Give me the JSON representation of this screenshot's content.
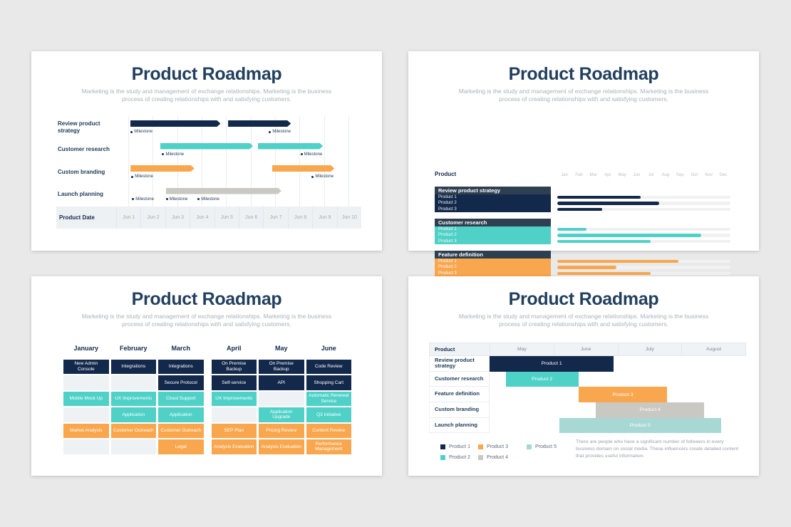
{
  "page": {
    "background": "#e9e9e9"
  },
  "colors": {
    "navy": "#13294b",
    "teal": "#4fd1c7",
    "orange": "#f9a74e",
    "gray": "#cac8c3",
    "light_teal": "#a8d8d4",
    "slate": "#2e3f51",
    "title_navy": "#22405e",
    "subtitle_gray": "#a8b2ba",
    "label_navy": "#1d3b57",
    "track_gray": "#f1f1f1",
    "empty_cell": "#eef2f5",
    "grid_line": "#e9edf0",
    "axis_text": "#9faab3"
  },
  "slides": [
    {
      "title": "Product Roadmap",
      "subtitle": "Marketing is the study and management of exchange relationships. Marketing is the business process of creating relationships with and satisfying customers."
    },
    {
      "title": "Product Roadmap",
      "subtitle": "Marketing is the study and management of exchange relationships. Marketing is the business process of creating relationships with and satisfying customers."
    },
    {
      "title": "Product Roadmap",
      "subtitle": "Marketing is the study and management of exchange relationships. Marketing is the business process of creating relationships with and satisfying customers."
    },
    {
      "title": "Product Roadmap",
      "subtitle": "Marketing is the study and management of exchange relationships. Marketing is the business process of creating relationships with and satisfying customers."
    }
  ],
  "chart_data": [
    {
      "type": "gantt_milestones",
      "units": "percent of Jun 1 - Jun 10 span",
      "milestone_label": "Milestone",
      "axis": {
        "label": "Product Date",
        "ticks": [
          "Jun 1",
          "Jun 2",
          "Jun 3",
          "Jun 4",
          "Jun 5",
          "Jun 6",
          "Jun 7",
          "Jun 8",
          "Jun 9",
          "Jun 10"
        ]
      },
      "rows": [
        {
          "label": "Review product strategy",
          "color": "navy",
          "bars": [
            [
              5.7,
              42.7
            ],
            [
              45.8,
              71.5
            ]
          ],
          "milestones": [
            5.9,
            62.5
          ]
        },
        {
          "label": "Customer research",
          "color": "teal",
          "bars": [
            [
              18,
              56
            ],
            [
              58,
              84.6
            ]
          ],
          "milestones": [
            18.8,
            75.4
          ]
        },
        {
          "label": "Custom branding",
          "color": "orange",
          "bars": [
            [
              5.9,
              32
            ],
            [
              63.8,
              89.3
            ]
          ],
          "milestones": [
            6.2,
            80
          ]
        },
        {
          "label": "Launch planning",
          "color": "gray",
          "bars": [
            [
              20.3,
              67.6
            ]
          ],
          "milestones": [
            6.5,
            20.3,
            33.3
          ]
        }
      ]
    },
    {
      "type": "grouped_progress_bars",
      "left_header": "Product",
      "months": [
        "Jan",
        "Feb",
        "Mar",
        "Apr",
        "May",
        "Jun",
        "Jul",
        "Aug",
        "Sep",
        "Oct",
        "Nov",
        "Dec"
      ],
      "groups": [
        {
          "name": "Review product strategy",
          "color": "navy",
          "items": [
            {
              "label": "Product 1",
              "pct": 48
            },
            {
              "label": "Product 2",
              "pct": 59
            },
            {
              "label": "Product 3",
              "pct": 26
            }
          ]
        },
        {
          "name": "Customer research",
          "color": "teal",
          "items": [
            {
              "label": "Product 1",
              "pct": 17
            },
            {
              "label": "Product 2",
              "pct": 83
            },
            {
              "label": "Product 3",
              "pct": 54
            }
          ]
        },
        {
          "name": "Feature definition",
          "color": "orange",
          "items": [
            {
              "label": "Product 1",
              "pct": 70
            },
            {
              "label": "Product 2",
              "pct": 34
            },
            {
              "label": "Product 3",
              "pct": 54
            }
          ]
        }
      ]
    },
    {
      "type": "monthly_grid",
      "columns": [
        "January",
        "February",
        "March",
        "April",
        "May",
        "June"
      ],
      "cells": [
        [
          {
            "text": "New Admin Console",
            "color": "navy"
          },
          {
            "text": "Integrations",
            "color": "navy"
          },
          {
            "text": "Integrations",
            "color": "navy"
          },
          {
            "text": "On Premise Backup",
            "color": "navy"
          },
          {
            "text": "On Premise Backup",
            "color": "navy"
          },
          {
            "text": "Code Review",
            "color": "navy"
          }
        ],
        [
          null,
          null,
          {
            "text": "Secure Protocol",
            "color": "navy"
          },
          {
            "text": "Self-service",
            "color": "navy"
          },
          {
            "text": "API",
            "color": "navy"
          },
          {
            "text": "Shopping Cart",
            "color": "navy"
          }
        ],
        [
          {
            "text": "Mobile Mock Up",
            "color": "teal"
          },
          {
            "text": "UX Improvements",
            "color": "teal"
          },
          {
            "text": "Cloud Support",
            "color": "teal"
          },
          {
            "text": "UX Improvements",
            "color": "teal"
          },
          null,
          {
            "text": "Automatic Renewal Service",
            "color": "teal"
          }
        ],
        [
          null,
          {
            "text": "Application",
            "color": "teal"
          },
          {
            "text": "Application",
            "color": "teal"
          },
          null,
          {
            "text": "Application Upgrade",
            "color": "teal"
          },
          {
            "text": "Q3 Initiative",
            "color": "teal"
          }
        ],
        [
          {
            "text": "Market Analysis",
            "color": "orange"
          },
          {
            "text": "Customer Outreach",
            "color": "orange"
          },
          {
            "text": "Customer Outreach",
            "color": "orange"
          },
          {
            "text": "SEP Plan",
            "color": "orange"
          },
          {
            "text": "Pricing Review",
            "color": "orange"
          },
          {
            "text": "Content Review",
            "color": "orange"
          }
        ],
        [
          null,
          null,
          {
            "text": "Legal",
            "color": "orange"
          },
          {
            "text": "Analysis Evaluation",
            "color": "orange"
          },
          {
            "text": "Analysis Evaluation",
            "color": "orange"
          },
          {
            "text": "Performance Management",
            "color": "orange"
          }
        ]
      ]
    },
    {
      "type": "gantt_table",
      "units": "percent of May - August span",
      "columns": [
        "Product",
        "May",
        "June",
        "July",
        "August"
      ],
      "rows": [
        {
          "label": "Review product strategy",
          "bar": "Product 1",
          "color": "navy",
          "start": 0,
          "end": 48.4
        },
        {
          "label": "Customer research",
          "bar": "Product 2",
          "color": "teal",
          "start": 6.3,
          "end": 34.6
        },
        {
          "label": "Feature definition",
          "bar": "Product 3",
          "color": "orange",
          "start": 34.6,
          "end": 69.3
        },
        {
          "label": "Custom branding",
          "bar": "Product 4",
          "color": "gray",
          "start": 41.5,
          "end": 83.7
        },
        {
          "label": "Launch planning",
          "bar": "Product 5",
          "color": "light_teal",
          "start": 27.2,
          "end": 90.2
        }
      ],
      "legend": [
        {
          "label": "Product 1",
          "color": "navy"
        },
        {
          "label": "Product 2",
          "color": "teal"
        },
        {
          "label": "Product 3",
          "color": "orange"
        },
        {
          "label": "Product 4",
          "color": "gray"
        },
        {
          "label": "Product 5",
          "color": "light_teal"
        }
      ],
      "note": "There are people who have a significant number of followers in every business domain on social media. These influencers create detailed content that provides useful information."
    }
  ]
}
